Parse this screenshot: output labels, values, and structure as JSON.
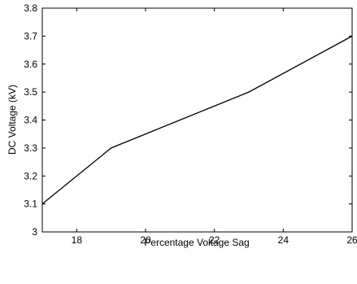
{
  "chart_data": {
    "type": "line",
    "title": "",
    "xlabel": "Percentage Voltage Sag",
    "ylabel": "DC Voltage (kV)",
    "xlim": [
      17,
      26
    ],
    "ylim": [
      3.0,
      3.8
    ],
    "xticks": [
      18,
      20,
      22,
      24,
      26
    ],
    "yticks": [
      3.0,
      3.1,
      3.2,
      3.3,
      3.4,
      3.5,
      3.6,
      3.7,
      3.8
    ],
    "xtick_labels": [
      "18",
      "20",
      "22",
      "24",
      "26"
    ],
    "ytick_labels": [
      "3",
      "3.1",
      "3.2",
      "3.3",
      "3.4",
      "3.5",
      "3.6",
      "3.7",
      "3.8"
    ],
    "grid": false,
    "series": [
      {
        "x": [
          17,
          19,
          23,
          26
        ],
        "y": [
          3.1,
          3.3,
          3.5,
          3.7
        ],
        "color": "#000000"
      }
    ]
  }
}
